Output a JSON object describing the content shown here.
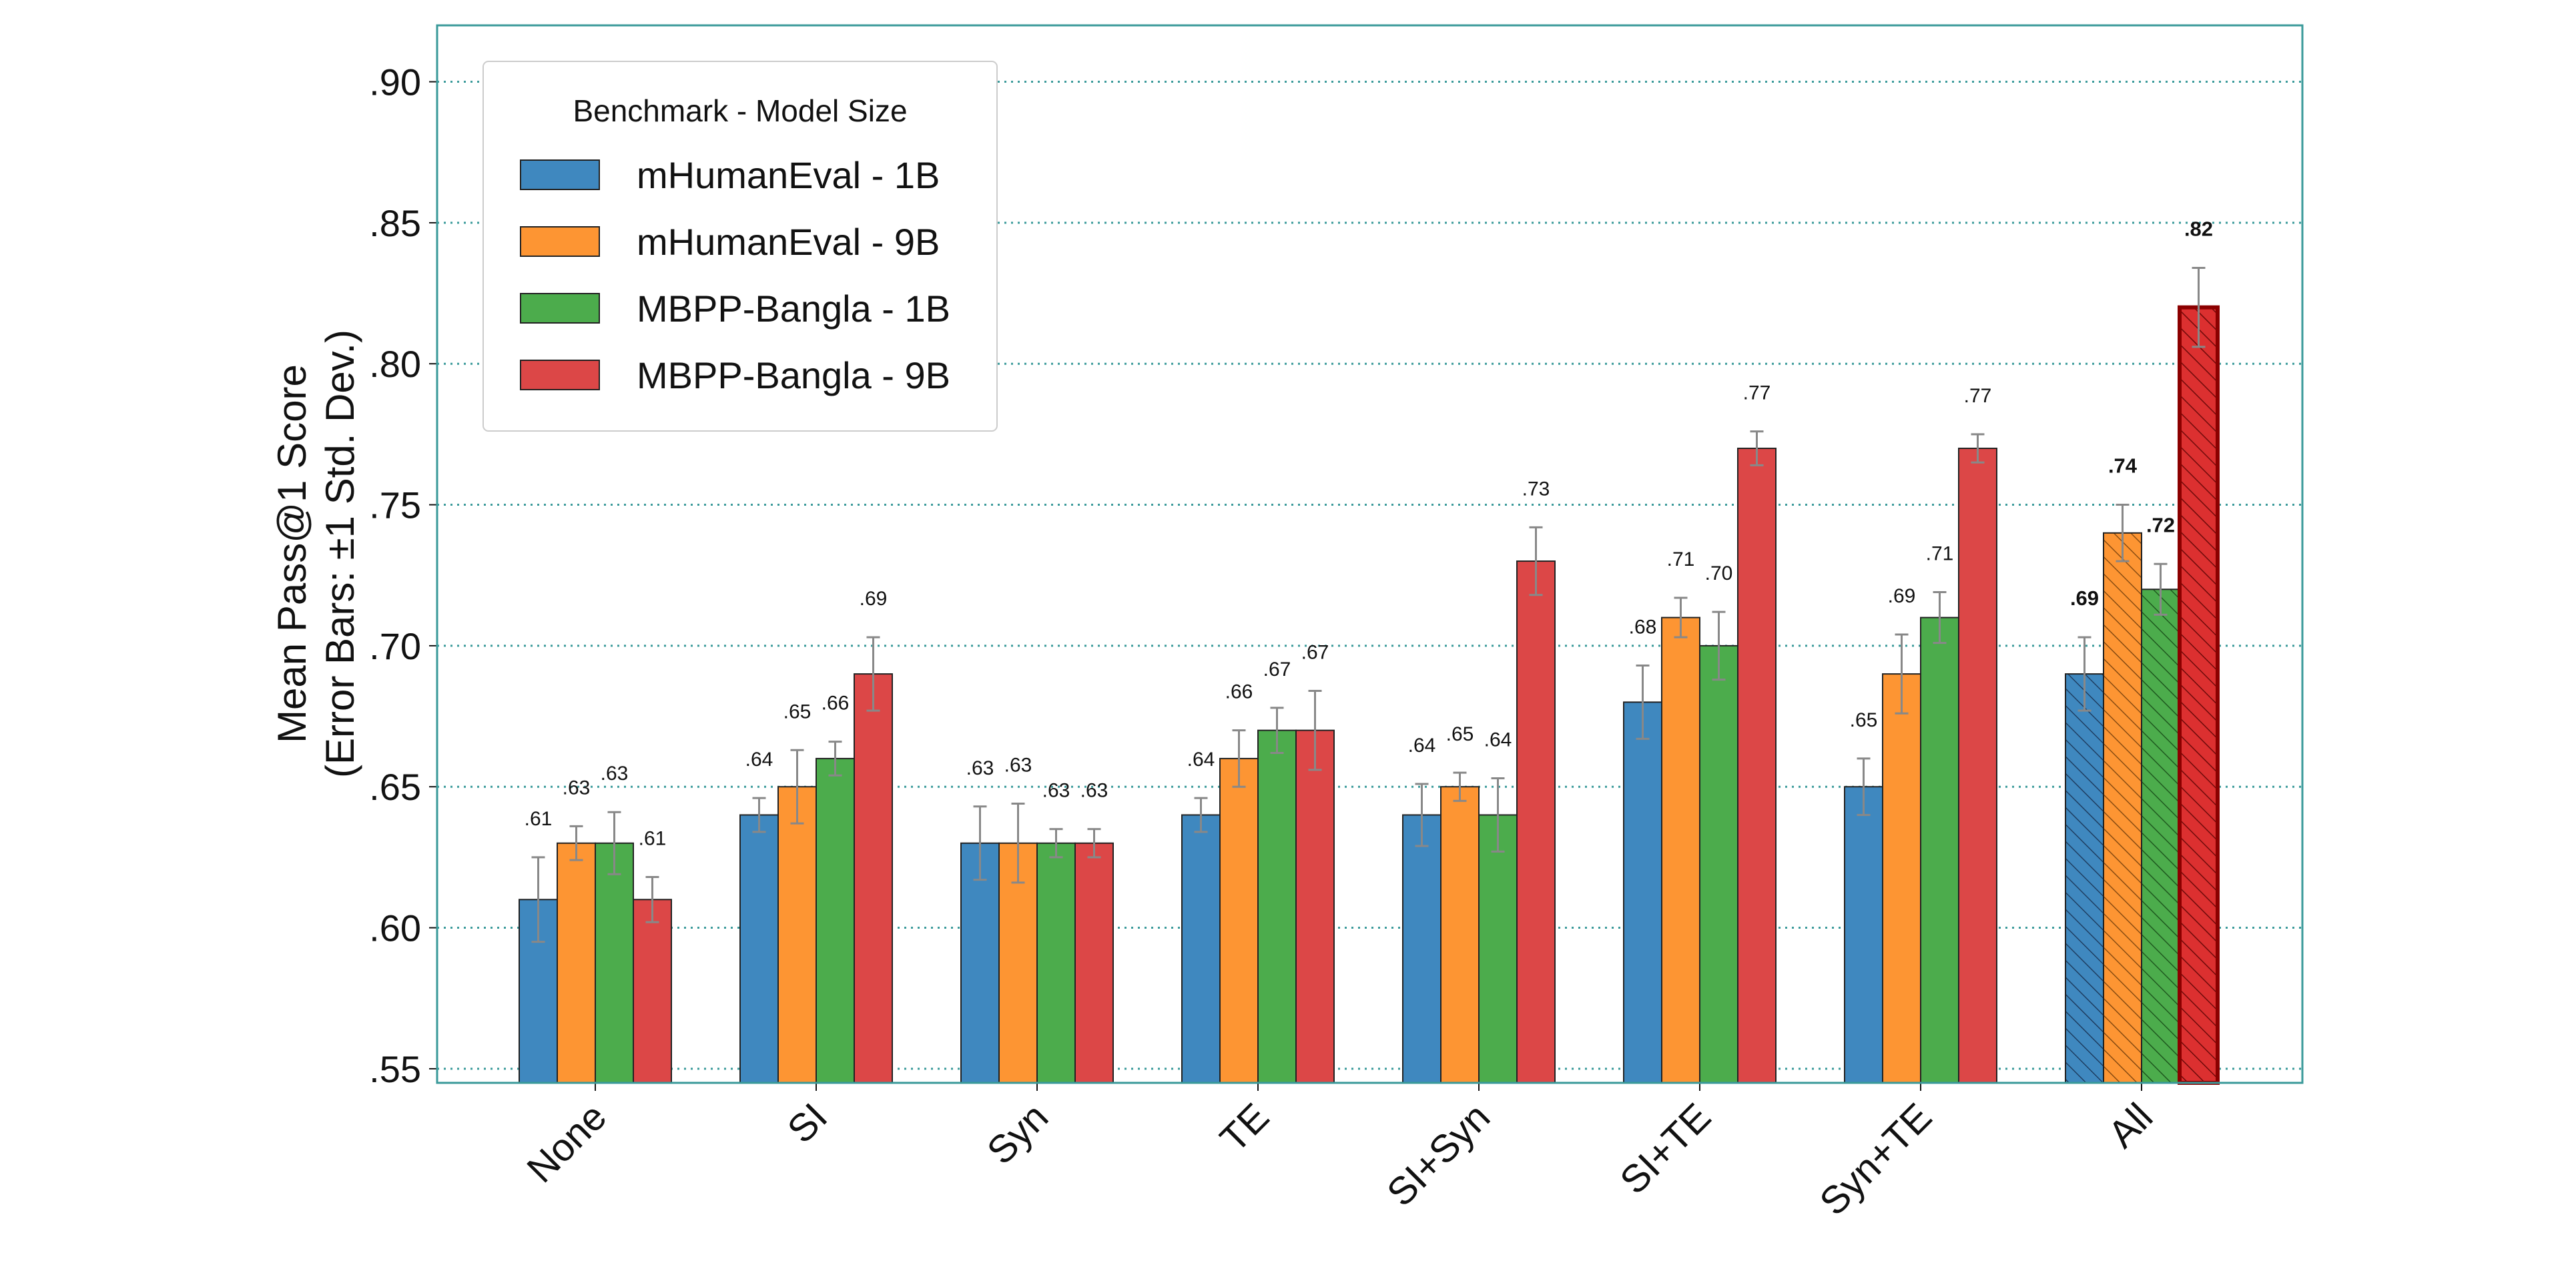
{
  "chart_data": {
    "type": "bar",
    "title": "",
    "ylabel_line1": "Mean Pass@1 Score",
    "ylabel_line2": "(Error Bars: ±1 Std. Dev.)",
    "xlabel": "",
    "ylim": [
      0.545,
      0.92
    ],
    "yticks": [
      0.55,
      0.6,
      0.65,
      0.7,
      0.75,
      0.8,
      0.85,
      0.9
    ],
    "ytick_labels": [
      ".55",
      ".60",
      ".65",
      ".70",
      ".75",
      ".80",
      ".85",
      ".90"
    ],
    "grid": "horizontal dotted",
    "legend_title": "Benchmark - Model Size",
    "legend_position": "top-left",
    "categories": [
      "None",
      "SI",
      "Syn",
      "TE",
      "SI+Syn",
      "SI+TE",
      "Syn+TE",
      "All"
    ],
    "series": [
      {
        "name": "mHumanEval - 1B",
        "color": "#3f88bf",
        "values": [
          0.61,
          0.64,
          0.63,
          0.64,
          0.64,
          0.68,
          0.65,
          0.69
        ],
        "errors": [
          0.015,
          0.006,
          0.013,
          0.006,
          0.011,
          0.013,
          0.01,
          0.013
        ],
        "labels": [
          ".61",
          ".64",
          ".63",
          ".64",
          ".64",
          ".68",
          ".65",
          ".69"
        ]
      },
      {
        "name": "mHumanEval - 9B",
        "color": "#fd9533",
        "values": [
          0.63,
          0.65,
          0.63,
          0.66,
          0.65,
          0.71,
          0.69,
          0.74
        ],
        "errors": [
          0.006,
          0.013,
          0.014,
          0.01,
          0.005,
          0.007,
          0.014,
          0.01
        ],
        "labels": [
          ".63",
          ".65",
          ".63",
          ".66",
          ".65",
          ".71",
          ".69",
          ".74"
        ]
      },
      {
        "name": "MBPP-Bangla - 1B",
        "color": "#4cac4c",
        "values": [
          0.63,
          0.66,
          0.63,
          0.67,
          0.64,
          0.7,
          0.71,
          0.72
        ],
        "errors": [
          0.011,
          0.006,
          0.005,
          0.008,
          0.013,
          0.012,
          0.009,
          0.009
        ],
        "labels": [
          ".63",
          ".66",
          ".63",
          ".67",
          ".64",
          ".70",
          ".71",
          ".72"
        ]
      },
      {
        "name": "MBPP-Bangla - 9B",
        "color": "#dc4747",
        "values": [
          0.61,
          0.69,
          0.63,
          0.67,
          0.73,
          0.77,
          0.77,
          0.82
        ],
        "errors": [
          0.008,
          0.013,
          0.005,
          0.014,
          0.012,
          0.006,
          0.005,
          0.014
        ],
        "labels": [
          ".61",
          ".69",
          ".63",
          ".67",
          ".73",
          ".77",
          ".77",
          ".82"
        ]
      }
    ],
    "highlight_category": "All",
    "highlight_style": "hatched, bold labels, dark red outline on best bar"
  }
}
